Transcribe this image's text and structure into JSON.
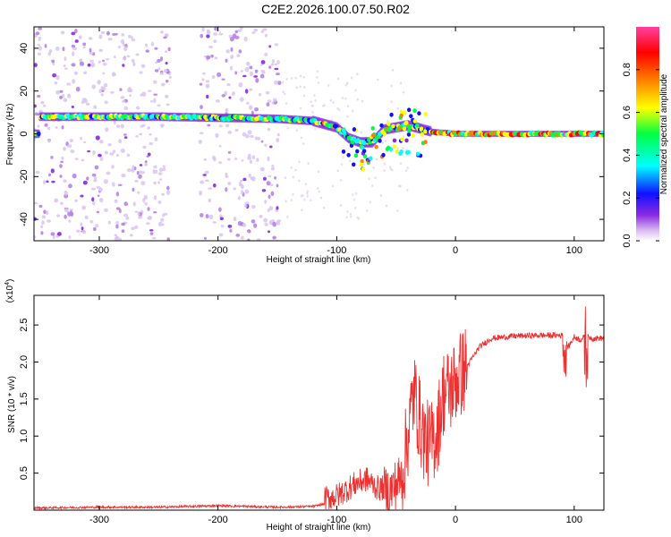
{
  "title": "C2E2.2026.100.07.50.R02",
  "colors": {
    "snr_line": "#ee3030",
    "colormap": [
      "#ffffff",
      "#d8b8f0",
      "#8a2be2",
      "#1010ff",
      "#00ffff",
      "#00ff40",
      "#ffff00",
      "#ff8000",
      "#ff0000",
      "#ff40a0"
    ]
  },
  "chart_data": [
    {
      "type": "heatmap",
      "title": "C2E2.2026.100.07.50.R02",
      "xlabel": "Height of straight line (km)",
      "ylabel": "Frequency (Hz)",
      "xlim": [
        -355,
        125
      ],
      "ylim": [
        -50,
        50
      ],
      "xticks": [
        -300,
        -200,
        -100,
        0,
        100
      ],
      "yticks": [
        -40,
        -20,
        0,
        20,
        40
      ],
      "colorbar": {
        "label": "Normalized spectral amplitude",
        "range": [
          0,
          1
        ],
        "ticks": [
          "0.0",
          "0.2",
          "0.4",
          "0.6",
          "0.8"
        ],
        "tick_values": [
          0,
          0.2,
          0.4,
          0.6,
          0.8
        ]
      },
      "main_trace": [
        {
          "x": -350,
          "y": 8
        },
        {
          "x": -300,
          "y": 8
        },
        {
          "x": -250,
          "y": 8
        },
        {
          "x": -200,
          "y": 7.5
        },
        {
          "x": -150,
          "y": 7
        },
        {
          "x": -120,
          "y": 6
        },
        {
          "x": -100,
          "y": 3
        },
        {
          "x": -90,
          "y": -2
        },
        {
          "x": -80,
          "y": -4
        },
        {
          "x": -70,
          "y": -4
        },
        {
          "x": -60,
          "y": 2
        },
        {
          "x": -40,
          "y": 4
        },
        {
          "x": -20,
          "y": 1
        },
        {
          "x": 0,
          "y": 0
        },
        {
          "x": 50,
          "y": 0
        },
        {
          "x": 100,
          "y": 0
        },
        {
          "x": 125,
          "y": 0
        }
      ],
      "noise_bands": [
        [
          -355,
          -240
        ],
        [
          -215,
          -148
        ]
      ]
    },
    {
      "type": "line",
      "xlabel": "Height of straight line (km)",
      "ylabel": "SNR (10 * v/v)",
      "y_multiplier": "(x10",
      "y_multiplier_exp": "4",
      "y_multiplier_close": ")",
      "xlim": [
        -355,
        125
      ],
      "ylim": [
        0,
        2.9
      ],
      "xticks": [
        -300,
        -200,
        -100,
        0,
        100
      ],
      "yticks": [
        0.5,
        1.0,
        1.5,
        2.0,
        2.5
      ],
      "ytick_labels": [
        "0.5",
        "1.0",
        "1.5",
        "2.0",
        "2.5"
      ],
      "series": [
        {
          "name": "SNR",
          "x": [
            -355,
            -300,
            -250,
            -200,
            -150,
            -120,
            -100,
            -85,
            -75,
            -65,
            -55,
            -45,
            -35,
            -30,
            -25,
            -20,
            -15,
            -10,
            -5,
            0,
            10,
            20,
            30,
            50,
            70,
            90,
            95,
            100,
            105,
            110,
            115,
            125
          ],
          "y": [
            0.03,
            0.04,
            0.04,
            0.06,
            0.04,
            0.05,
            0.12,
            0.28,
            0.35,
            0.22,
            0.25,
            0.45,
            1.6,
            1.2,
            0.9,
            0.9,
            1.1,
            1.6,
            1.6,
            1.75,
            1.95,
            2.2,
            2.32,
            2.35,
            2.36,
            2.36,
            2.2,
            2.34,
            2.3,
            2.35,
            2.32,
            2.32
          ]
        }
      ]
    }
  ],
  "labels": {
    "xlabel_top": "Height of straight line (km)",
    "xlabel_bottom": "Height of straight line (km)",
    "ylabel_top": "Frequency (Hz)",
    "ylabel_bottom": "SNR (10 * v/v)",
    "colorbar_label": "Normalized spectral amplitude"
  }
}
